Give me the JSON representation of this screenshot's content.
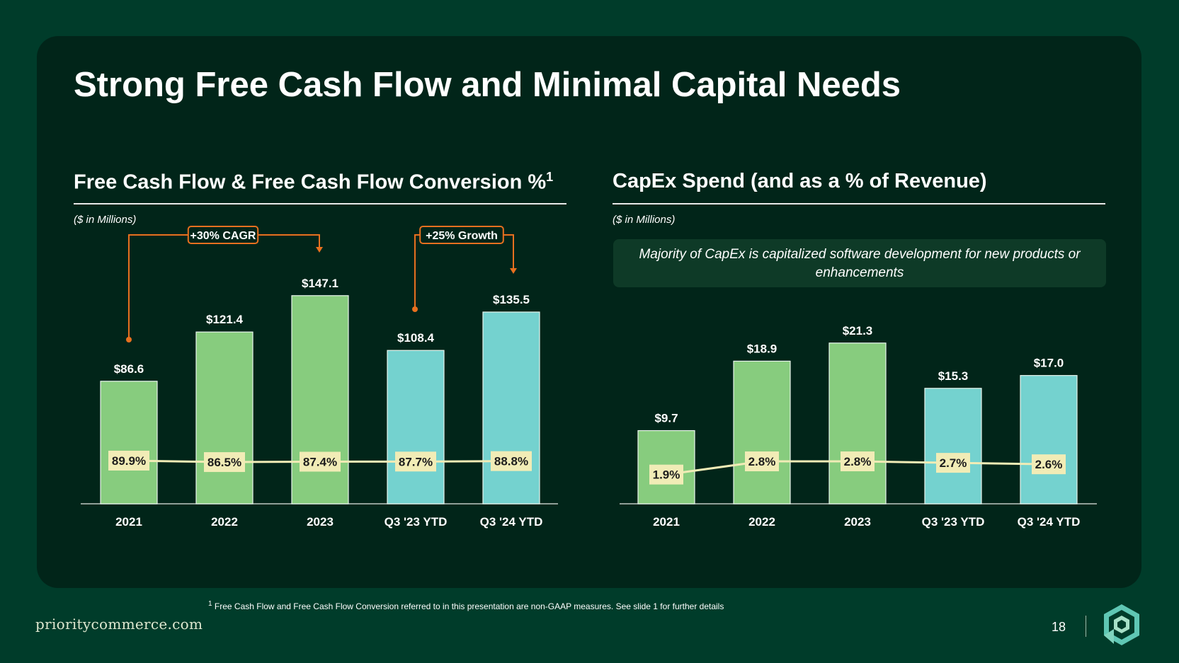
{
  "title": "Strong Free Cash Flow and Minimal Capital Needs",
  "left_chart": {
    "heading": "Free Cash Flow & Free Cash Flow Conversion %",
    "heading_sup": "1",
    "units": "($ in Millions)",
    "cagr_label": "+30% CAGR",
    "growth_label": "+25% Growth"
  },
  "right_chart": {
    "heading": "CapEx Spend (and as a % of Revenue)",
    "units": "($ in Millions)",
    "callout": "Majority of CapEx is capitalized software development for new products or enhancements"
  },
  "colors": {
    "green_bar": "#87cc7e",
    "teal_bar": "#74d2cf",
    "line": "#f1ecb6",
    "arrow": "#e8701f"
  },
  "chart_data": [
    {
      "type": "bar",
      "title": "Free Cash Flow & Free Cash Flow Conversion %",
      "categories": [
        "2021",
        "2022",
        "2023",
        "Q3 '23 YTD",
        "Q3 '24 YTD"
      ],
      "series": [
        {
          "name": "Free Cash Flow ($M)",
          "values": [
            86.6,
            121.4,
            147.1,
            108.4,
            135.5
          ],
          "value_labels": [
            "$86.6",
            "$121.4",
            "$147.1",
            "$108.4",
            "$135.5"
          ]
        },
        {
          "name": "Free Cash Flow Conversion %",
          "type": "line",
          "values": [
            89.9,
            86.5,
            87.4,
            87.7,
            88.8
          ],
          "value_labels": [
            "89.9%",
            "86.5%",
            "87.4%",
            "87.7%",
            "88.8%"
          ]
        }
      ],
      "ylim": [
        0,
        160
      ]
    },
    {
      "type": "bar",
      "title": "CapEx Spend (and as a % of Revenue)",
      "categories": [
        "2021",
        "2022",
        "2023",
        "Q3 '23 YTD",
        "Q3 '24 YTD"
      ],
      "series": [
        {
          "name": "CapEx ($M)",
          "values": [
            9.7,
            18.9,
            21.3,
            15.3,
            17.0
          ],
          "value_labels": [
            "$9.7",
            "$18.9",
            "$21.3",
            "$15.3",
            "$17.0"
          ]
        },
        {
          "name": "CapEx % of Revenue",
          "type": "line",
          "values": [
            1.9,
            2.8,
            2.8,
            2.7,
            2.6
          ],
          "value_labels": [
            "1.9%",
            "2.8%",
            "2.8%",
            "2.7%",
            "2.6%"
          ]
        }
      ],
      "ylim": [
        0,
        24
      ]
    }
  ],
  "footnote": {
    "marker": "1",
    "text": " Free Cash Flow and Free Cash Flow Conversion referred to in this presentation are non-GAAP measures. See slide 1 for further details"
  },
  "footer": {
    "brand": "prioritycommerce.com",
    "page_number": "18",
    "logo_icon": "priority-hex-logo-icon"
  }
}
